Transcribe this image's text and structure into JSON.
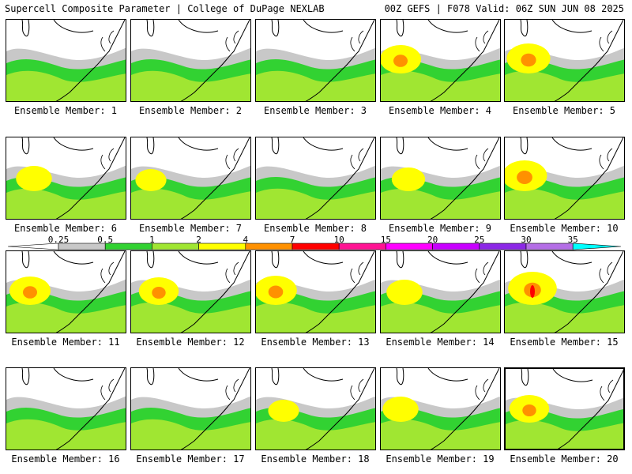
{
  "header": {
    "left_title": "Supercell Composite Parameter | College of DuPage NEXLAB",
    "right_title": "00Z GEFS | F078 Valid: 06Z SUN JUN 08 2025"
  },
  "panel_label_prefix": "Ensemble Member: ",
  "members": [
    {
      "id": 1,
      "label": "Ensemble Member: 1",
      "intensity": 0.9
    },
    {
      "id": 2,
      "label": "Ensemble Member: 2",
      "intensity": 0.8
    },
    {
      "id": 3,
      "label": "Ensemble Member: 3",
      "intensity": 0.7
    },
    {
      "id": 4,
      "label": "Ensemble Member: 4",
      "intensity": 2.0
    },
    {
      "id": 5,
      "label": "Ensemble Member: 5",
      "intensity": 2.2
    },
    {
      "id": 6,
      "label": "Ensemble Member: 6",
      "intensity": 1.6
    },
    {
      "id": 7,
      "label": "Ensemble Member: 7",
      "intensity": 1.2
    },
    {
      "id": 8,
      "label": "Ensemble Member: 8",
      "intensity": 0.8
    },
    {
      "id": 9,
      "label": "Ensemble Member: 9",
      "intensity": 1.4
    },
    {
      "id": 10,
      "label": "Ensemble Member: 10",
      "intensity": 2.3
    },
    {
      "id": 11,
      "label": "Ensemble Member: 11",
      "intensity": 2.0
    },
    {
      "id": 12,
      "label": "Ensemble Member: 12",
      "intensity": 1.9
    },
    {
      "id": 13,
      "label": "Ensemble Member: 13",
      "intensity": 2.1
    },
    {
      "id": 14,
      "label": "Ensemble Member: 14",
      "intensity": 1.6
    },
    {
      "id": 15,
      "label": "Ensemble Member: 15",
      "intensity": 2.6
    },
    {
      "id": 16,
      "label": "Ensemble Member: 16",
      "intensity": 0.6
    },
    {
      "id": 17,
      "label": "Ensemble Member: 17",
      "intensity": 0.8
    },
    {
      "id": 18,
      "label": "Ensemble Member: 18",
      "intensity": 1.2
    },
    {
      "id": 19,
      "label": "Ensemble Member: 19",
      "intensity": 1.6
    },
    {
      "id": 20,
      "label": "Ensemble Member: 20",
      "intensity": 1.9,
      "selected": true
    }
  ],
  "colorbar": {
    "labels": [
      "0.25",
      "0.5",
      "1",
      "2",
      "4",
      "7",
      "10",
      "15",
      "20",
      "25",
      "30",
      "35"
    ],
    "colors": [
      "#ffffff",
      "#c8c8c8",
      "#32d232",
      "#a0e632",
      "#ffff00",
      "#ff9100",
      "#ff0000",
      "#ff1493",
      "#ff00ff",
      "#c800ff",
      "#8c28e6",
      "#b46ee6",
      "#00ffff"
    ]
  }
}
